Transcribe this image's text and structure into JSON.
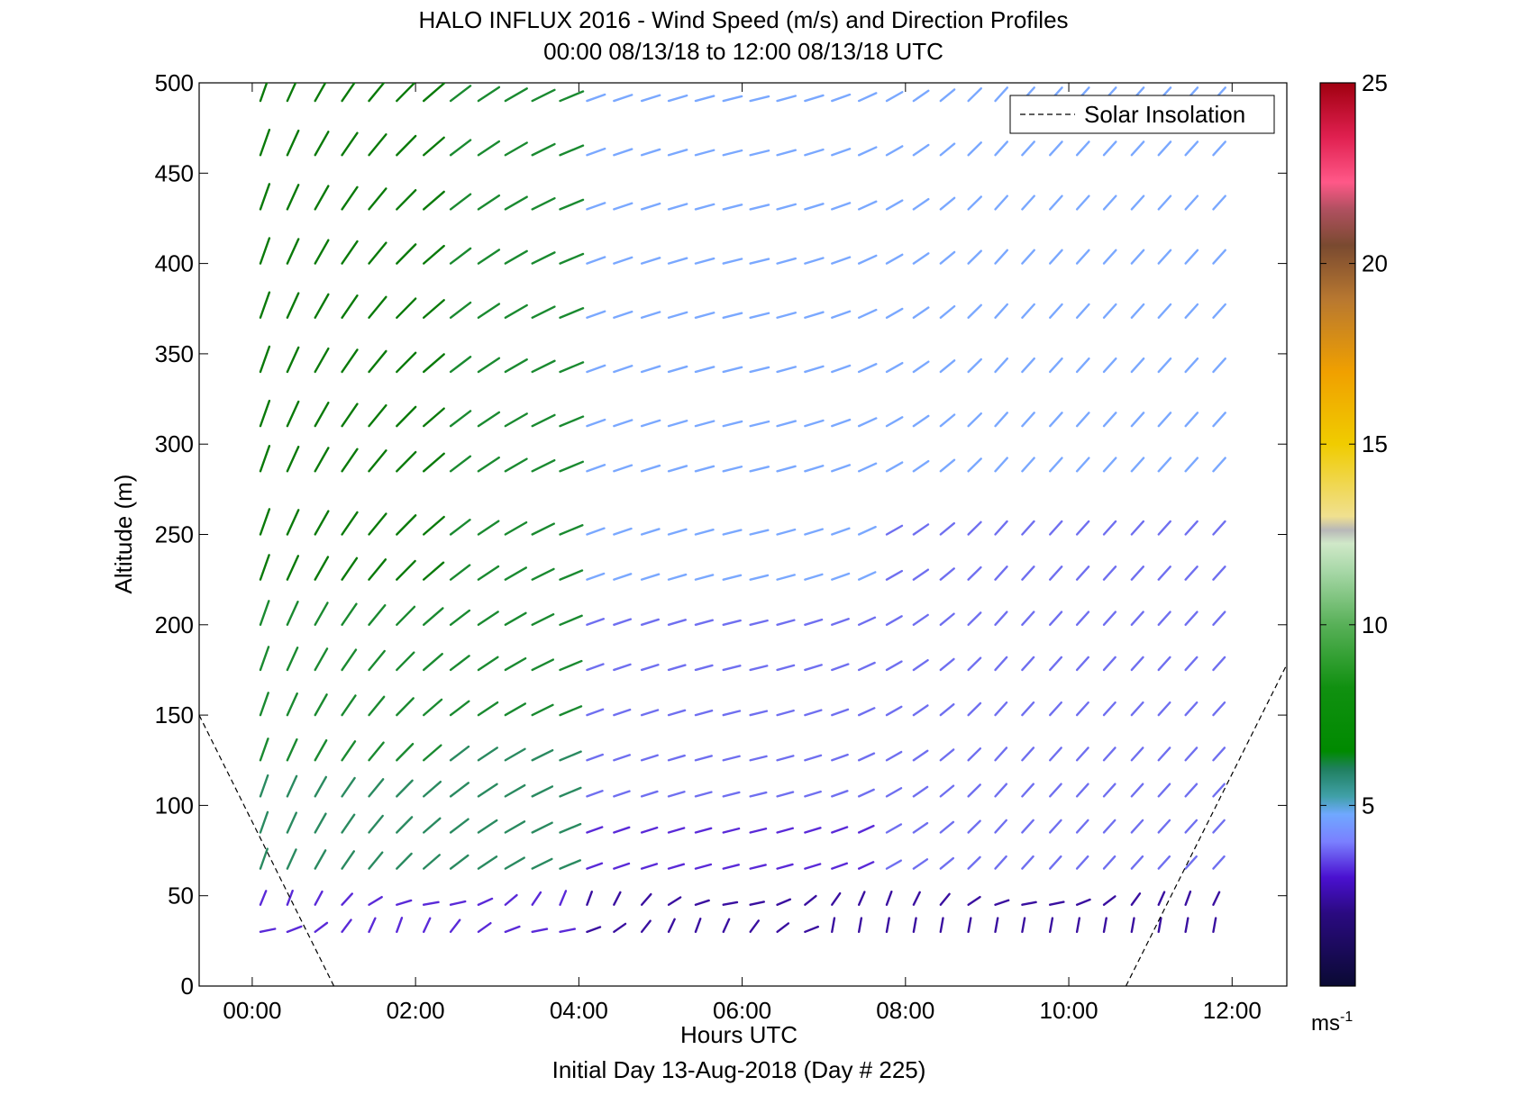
{
  "chart_data": {
    "type": "wind-barb-profile",
    "title": "HALO INFLUX 2016 - Wind Speed (m/s) and Direction Profiles",
    "subtitle": "00:00 08/13/18 to 12:00 08/13/18  UTC",
    "xlabel": "Hours UTC",
    "xlabel2": "Initial Day 13-Aug-2018 (Day # 225)",
    "ylabel": "Altitude (m)",
    "xlim": [
      -0.65,
      12.67
    ],
    "ylim": [
      0,
      500
    ],
    "x_ticks": [
      0,
      2,
      4,
      6,
      8,
      10,
      12
    ],
    "x_tick_labels": [
      "00:00",
      "02:00",
      "04:00",
      "06:00",
      "08:00",
      "10:00",
      "12:00"
    ],
    "y_ticks": [
      0,
      50,
      100,
      150,
      200,
      250,
      300,
      350,
      400,
      450,
      500
    ],
    "y_tick_labels": [
      "0",
      "50",
      "100",
      "150",
      "200",
      "250",
      "300",
      "350",
      "400",
      "450",
      "500"
    ],
    "legend": {
      "label": "Solar Insolation",
      "placement": "top-right",
      "line_style": "dashed"
    },
    "colorbar": {
      "min": 0,
      "max": 25,
      "ticks": [
        5,
        10,
        15,
        20,
        25
      ],
      "tick_labels": [
        "5",
        "10",
        "15",
        "20",
        "25"
      ],
      "unit_base": "ms",
      "unit_exp": "-1"
    },
    "times_hours": [
      0.1,
      0.43,
      0.77,
      1.1,
      1.43,
      1.77,
      2.1,
      2.43,
      2.77,
      3.1,
      3.43,
      3.77,
      4.1,
      4.43,
      4.77,
      5.1,
      5.43,
      5.77,
      6.1,
      6.43,
      6.77,
      7.1,
      7.43,
      7.77,
      8.1,
      8.43,
      8.77,
      9.1,
      9.43,
      9.77,
      10.1,
      10.43,
      10.77,
      11.1,
      11.43,
      11.77
    ],
    "altitudes_m": [
      30,
      45,
      65,
      85,
      105,
      125,
      150,
      175,
      200,
      225,
      250,
      285,
      310,
      340,
      370,
      400,
      430,
      460,
      490
    ],
    "solar_insolation_curve": {
      "left": [
        [
          -0.65,
          150
        ],
        [
          1.0,
          0
        ]
      ],
      "right": [
        [
          10.7,
          0
        ],
        [
          12.67,
          178
        ]
      ]
    }
  }
}
